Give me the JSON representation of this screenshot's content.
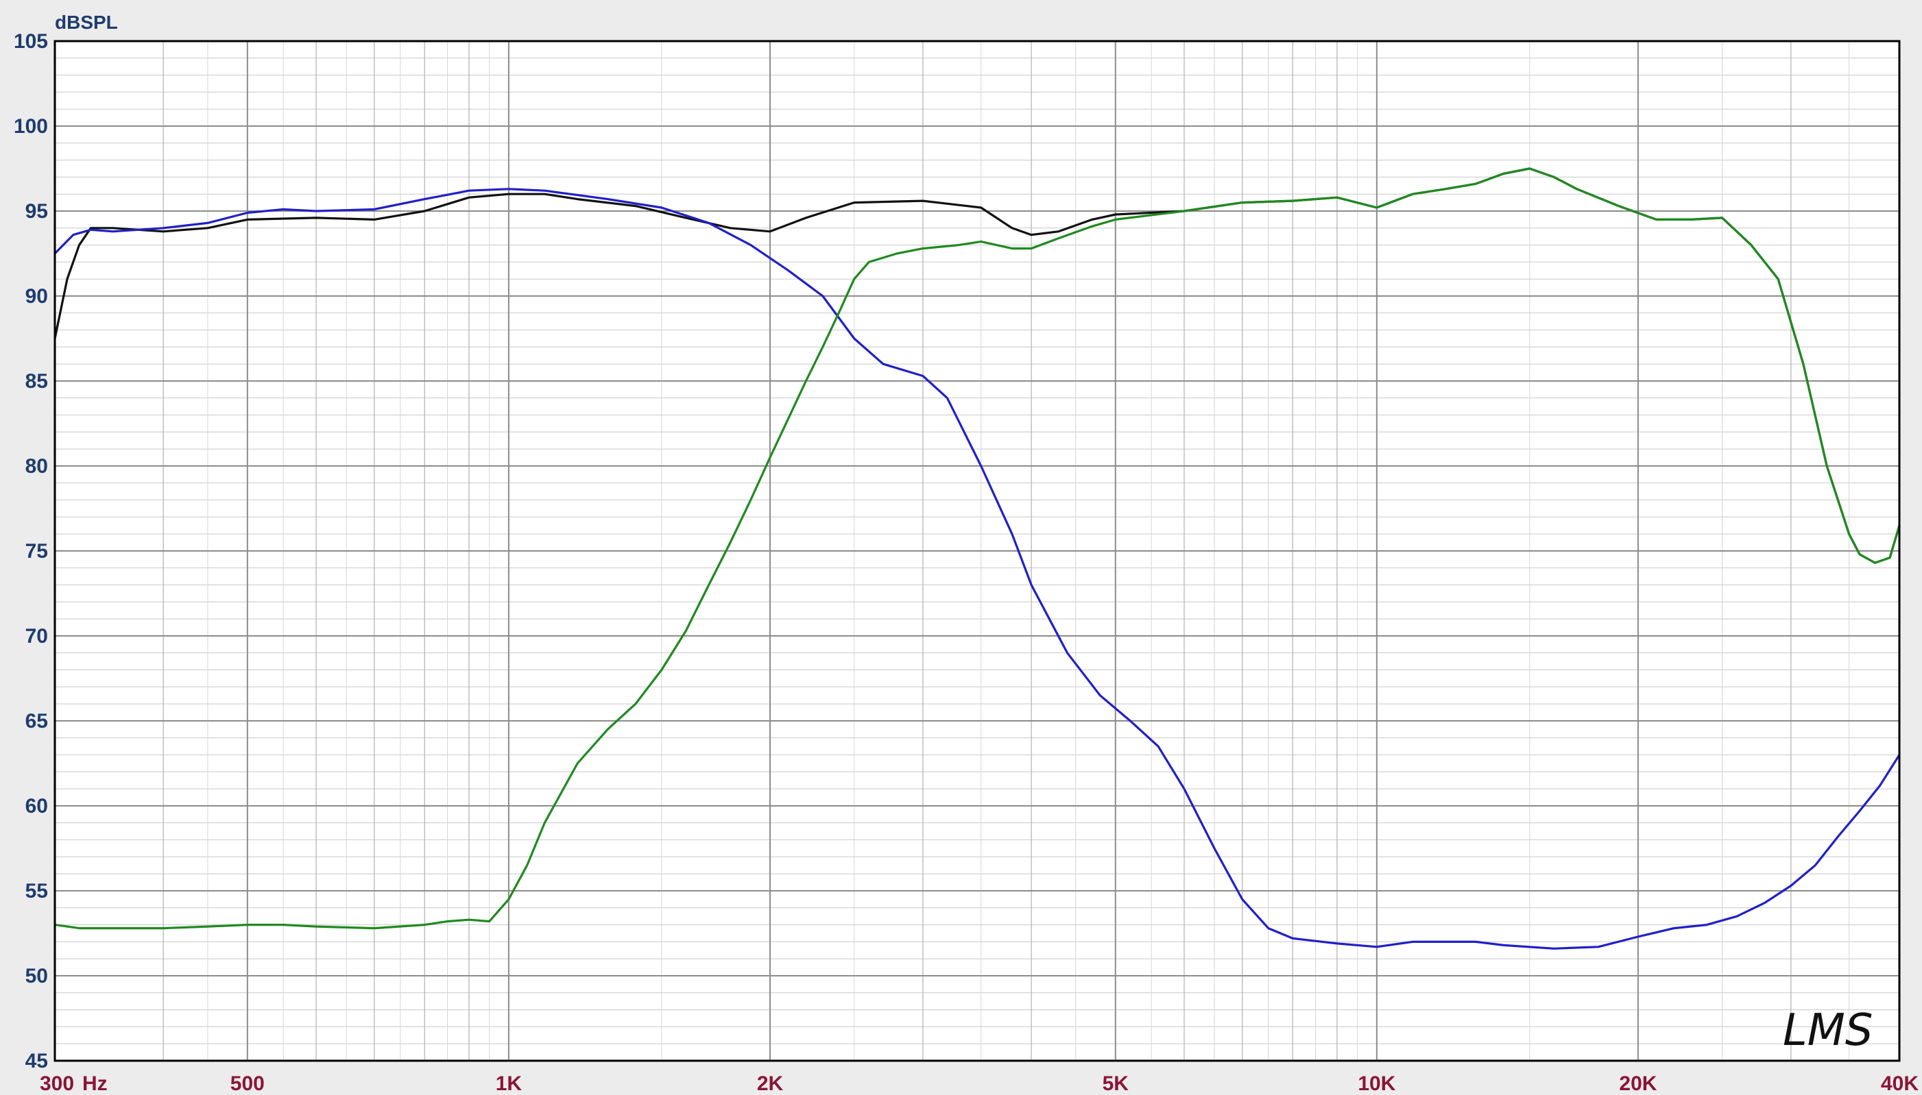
{
  "chart_data": {
    "type": "line",
    "ylabel": "dBSPL",
    "xunit": "Hz",
    "signature": "LMS",
    "x_scale": "log",
    "xlim": [
      300,
      40000
    ],
    "ylim": [
      45,
      105
    ],
    "grid": true,
    "y_ticks": [
      {
        "value": 105,
        "label": "105"
      },
      {
        "value": 100,
        "label": "100"
      },
      {
        "value": 95,
        "label": "95"
      },
      {
        "value": 90,
        "label": "90"
      },
      {
        "value": 85,
        "label": "85"
      },
      {
        "value": 80,
        "label": "80"
      },
      {
        "value": 75,
        "label": "75"
      },
      {
        "value": 70,
        "label": "70"
      },
      {
        "value": 65,
        "label": "65"
      },
      {
        "value": 60,
        "label": "60"
      },
      {
        "value": 55,
        "label": "55"
      },
      {
        "value": 50,
        "label": "50"
      },
      {
        "value": 45,
        "label": "45"
      }
    ],
    "x_ticks": [
      {
        "value": 300,
        "label": "300"
      },
      {
        "value": 500,
        "label": "500"
      },
      {
        "value": 1000,
        "label": "1K"
      },
      {
        "value": 2000,
        "label": "2K"
      },
      {
        "value": 5000,
        "label": "5K"
      },
      {
        "value": 10000,
        "label": "10K"
      },
      {
        "value": 20000,
        "label": "20K"
      },
      {
        "value": 40000,
        "label": "40K"
      }
    ],
    "series": [
      {
        "color": "#111111",
        "points": [
          [
            300,
            87.5
          ],
          [
            310,
            91
          ],
          [
            320,
            93
          ],
          [
            330,
            94
          ],
          [
            350,
            94
          ],
          [
            400,
            93.8
          ],
          [
            450,
            94
          ],
          [
            500,
            94.5
          ],
          [
            600,
            94.6
          ],
          [
            700,
            94.5
          ],
          [
            800,
            95
          ],
          [
            900,
            95.8
          ],
          [
            1000,
            96
          ],
          [
            1100,
            96
          ],
          [
            1200,
            95.7
          ],
          [
            1400,
            95.3
          ],
          [
            1600,
            94.6
          ],
          [
            1800,
            94
          ],
          [
            2000,
            93.8
          ],
          [
            2200,
            94.6
          ],
          [
            2500,
            95.5
          ],
          [
            3000,
            95.6
          ],
          [
            3500,
            95.2
          ],
          [
            3800,
            94
          ],
          [
            4000,
            93.6
          ],
          [
            4300,
            93.8
          ],
          [
            4700,
            94.5
          ],
          [
            5000,
            94.8
          ],
          [
            6000,
            95
          ],
          [
            7000,
            95.5
          ],
          [
            8000,
            95.6
          ],
          [
            9000,
            95.8
          ],
          [
            10000,
            95.2
          ],
          [
            11000,
            96
          ],
          [
            12000,
            96.3
          ],
          [
            13000,
            96.6
          ],
          [
            14000,
            97.2
          ],
          [
            15000,
            97.5
          ],
          [
            16000,
            97
          ],
          [
            17000,
            96.3
          ],
          [
            19000,
            95.3
          ],
          [
            21000,
            94.5
          ],
          [
            23000,
            94.5
          ],
          [
            25000,
            94.6
          ],
          [
            27000,
            93
          ],
          [
            29000,
            91
          ],
          [
            31000,
            86
          ],
          [
            33000,
            80
          ],
          [
            35000,
            76
          ],
          [
            36000,
            74.8
          ],
          [
            37500,
            74.3
          ],
          [
            39000,
            74.6
          ],
          [
            40000,
            76.5
          ]
        ]
      },
      {
        "color": "#2020c8",
        "points": [
          [
            300,
            92.5
          ],
          [
            315,
            93.6
          ],
          [
            330,
            93.9
          ],
          [
            350,
            93.8
          ],
          [
            400,
            94
          ],
          [
            450,
            94.3
          ],
          [
            500,
            94.9
          ],
          [
            550,
            95.1
          ],
          [
            600,
            95
          ],
          [
            700,
            95.1
          ],
          [
            800,
            95.7
          ],
          [
            900,
            96.2
          ],
          [
            1000,
            96.3
          ],
          [
            1100,
            96.2
          ],
          [
            1300,
            95.7
          ],
          [
            1500,
            95.2
          ],
          [
            1700,
            94.3
          ],
          [
            1900,
            93
          ],
          [
            2100,
            91.5
          ],
          [
            2300,
            90
          ],
          [
            2500,
            87.5
          ],
          [
            2700,
            86
          ],
          [
            3000,
            85.3
          ],
          [
            3200,
            84
          ],
          [
            3500,
            80
          ],
          [
            3800,
            76
          ],
          [
            4000,
            73
          ],
          [
            4400,
            69
          ],
          [
            4800,
            66.5
          ],
          [
            5200,
            65
          ],
          [
            5600,
            63.5
          ],
          [
            6000,
            61
          ],
          [
            6500,
            57.5
          ],
          [
            7000,
            54.5
          ],
          [
            7500,
            52.8
          ],
          [
            8000,
            52.2
          ],
          [
            9000,
            51.9
          ],
          [
            10000,
            51.7
          ],
          [
            11000,
            52
          ],
          [
            12000,
            52
          ],
          [
            13000,
            52
          ],
          [
            14000,
            51.8
          ],
          [
            16000,
            51.6
          ],
          [
            18000,
            51.7
          ],
          [
            20000,
            52.3
          ],
          [
            22000,
            52.8
          ],
          [
            24000,
            53
          ],
          [
            26000,
            53.5
          ],
          [
            28000,
            54.3
          ],
          [
            30000,
            55.3
          ],
          [
            32000,
            56.5
          ],
          [
            34000,
            58.2
          ],
          [
            36000,
            59.7
          ],
          [
            38000,
            61.2
          ],
          [
            40000,
            63
          ]
        ]
      },
      {
        "color": "#208a20",
        "points": [
          [
            300,
            53
          ],
          [
            320,
            52.8
          ],
          [
            350,
            52.8
          ],
          [
            400,
            52.8
          ],
          [
            450,
            52.9
          ],
          [
            500,
            53
          ],
          [
            550,
            53
          ],
          [
            600,
            52.9
          ],
          [
            700,
            52.8
          ],
          [
            800,
            53
          ],
          [
            850,
            53.2
          ],
          [
            900,
            53.3
          ],
          [
            950,
            53.2
          ],
          [
            1000,
            54.5
          ],
          [
            1050,
            56.5
          ],
          [
            1100,
            59
          ],
          [
            1200,
            62.5
          ],
          [
            1300,
            64.5
          ],
          [
            1400,
            66
          ],
          [
            1500,
            68
          ],
          [
            1600,
            70.3
          ],
          [
            1700,
            73
          ],
          [
            1800,
            75.5
          ],
          [
            1900,
            78
          ],
          [
            2000,
            80.5
          ],
          [
            2100,
            82.8
          ],
          [
            2200,
            85
          ],
          [
            2300,
            87
          ],
          [
            2400,
            89
          ],
          [
            2500,
            91
          ],
          [
            2600,
            92
          ],
          [
            2800,
            92.5
          ],
          [
            3000,
            92.8
          ],
          [
            3300,
            93
          ],
          [
            3500,
            93.2
          ],
          [
            3800,
            92.8
          ],
          [
            4000,
            92.8
          ],
          [
            4300,
            93.4
          ],
          [
            4700,
            94.1
          ],
          [
            5000,
            94.5
          ],
          [
            6000,
            95
          ],
          [
            7000,
            95.5
          ],
          [
            8000,
            95.6
          ],
          [
            9000,
            95.8
          ],
          [
            10000,
            95.2
          ],
          [
            11000,
            96
          ],
          [
            12000,
            96.3
          ],
          [
            13000,
            96.6
          ],
          [
            14000,
            97.2
          ],
          [
            15000,
            97.5
          ],
          [
            16000,
            97
          ],
          [
            17000,
            96.3
          ],
          [
            19000,
            95.3
          ],
          [
            21000,
            94.5
          ],
          [
            23000,
            94.5
          ],
          [
            25000,
            94.6
          ],
          [
            27000,
            93
          ],
          [
            29000,
            91
          ],
          [
            31000,
            86
          ],
          [
            33000,
            80
          ],
          [
            35000,
            76
          ],
          [
            36000,
            74.8
          ],
          [
            37500,
            74.3
          ],
          [
            39000,
            74.6
          ],
          [
            40000,
            76.5
          ]
        ]
      }
    ]
  }
}
